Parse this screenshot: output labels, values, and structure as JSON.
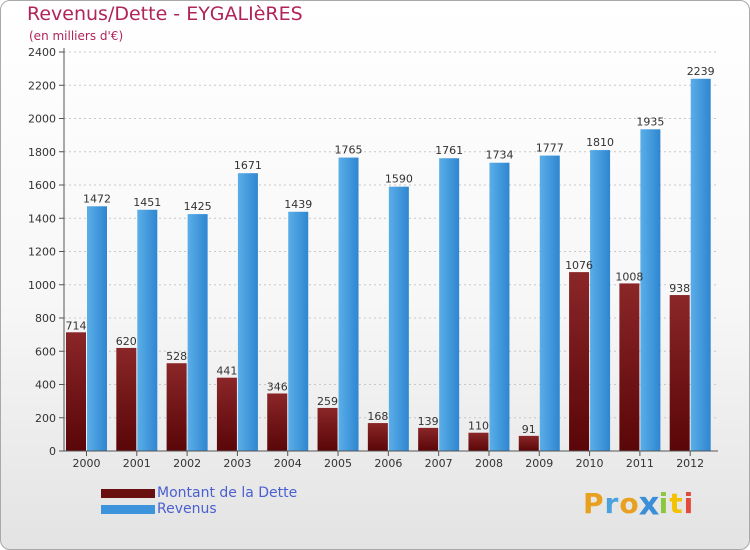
{
  "header": {
    "title": "Revenus/Dette - EYGALIèRES",
    "subtitle": "(en milliers d'€)"
  },
  "colors": {
    "dette": "#7a1618",
    "revenus": "#3d93dc",
    "title": "#b0245a",
    "legend_text": "#4a5fd0"
  },
  "legend": {
    "items": [
      {
        "label": "Montant de la Dette",
        "color": "#6a0f10"
      },
      {
        "label": "Revenus",
        "color": "#3d93dc"
      }
    ]
  },
  "logo": {
    "text": "Proxiti",
    "letters": [
      {
        "ch": "P",
        "color": "#e8a020"
      },
      {
        "ch": "r",
        "color": "#4aa3dd"
      },
      {
        "ch": "o",
        "color": "#e8a020"
      },
      {
        "ch": "x",
        "color": "#3a8fd8"
      },
      {
        "ch": "i",
        "color": "#8cc63f"
      },
      {
        "ch": "t",
        "color": "#f2c200"
      },
      {
        "ch": "i",
        "color": "#e44a3c"
      }
    ]
  },
  "chart_data": {
    "type": "bar",
    "title": "Revenus/Dette - EYGALIèRES",
    "ylabel": "(en milliers d'€)",
    "categories": [
      "2000",
      "2001",
      "2002",
      "2003",
      "2004",
      "2005",
      "2006",
      "2007",
      "2008",
      "2009",
      "2010",
      "2011",
      "2012"
    ],
    "series": [
      {
        "name": "Montant de la Dette",
        "values": [
          714,
          620,
          528,
          441,
          346,
          259,
          168,
          139,
          110,
          91,
          1076,
          1008,
          938
        ],
        "value_labels": [
          "714",
          "620",
          "528",
          "441",
          "346",
          "259",
          "168",
          "139",
          "110",
          "91",
          "1076",
          "1008",
          "938"
        ]
      },
      {
        "name": "Revenus",
        "values": [
          1472,
          1451,
          1425,
          1671,
          1439,
          1765,
          1590,
          1761,
          1734,
          1777,
          1810,
          1935,
          2239
        ],
        "value_labels": [
          "1472",
          "1451",
          "1425",
          "1671",
          "1439",
          "1765",
          "1590",
          "1761",
          "1734",
          "1777",
          "1810",
          "1935",
          "2239"
        ]
      }
    ],
    "ylim": [
      0,
      2400
    ],
    "yticks": [
      0,
      200,
      400,
      600,
      800,
      1000,
      1200,
      1400,
      1600,
      1800,
      2000,
      2200,
      2400
    ],
    "grid": true,
    "legend_position": "bottom-left"
  }
}
